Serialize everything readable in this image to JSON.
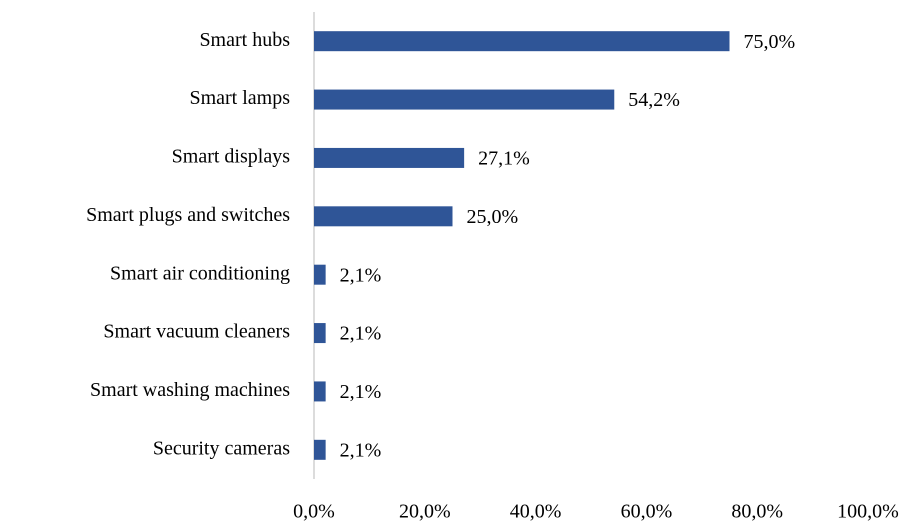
{
  "chart_data": {
    "type": "bar",
    "orientation": "horizontal",
    "categories": [
      "Smart hubs",
      "Smart lamps",
      "Smart displays",
      "Smart plugs and switches",
      "Smart air conditioning",
      "Smart vacuum cleaners",
      "Smart washing machines",
      "Security cameras"
    ],
    "values": [
      75.0,
      54.2,
      27.1,
      25.0,
      2.1,
      2.1,
      2.1,
      2.1
    ],
    "value_labels": [
      "75,0%",
      "54,2%",
      "27,1%",
      "25,0%",
      "2,1%",
      "2,1%",
      "2,1%",
      "2,1%"
    ],
    "color": "#2f5597",
    "xlim": [
      0,
      100
    ],
    "xticks": [
      {
        "value": 0,
        "label": "0,0%"
      },
      {
        "value": 20,
        "label": "20,0%"
      },
      {
        "value": 40,
        "label": "40,0%"
      },
      {
        "value": 60,
        "label": "60,0%"
      },
      {
        "value": 80,
        "label": "80,0%"
      },
      {
        "value": 100,
        "label": "100,0%"
      }
    ],
    "grid": false
  }
}
